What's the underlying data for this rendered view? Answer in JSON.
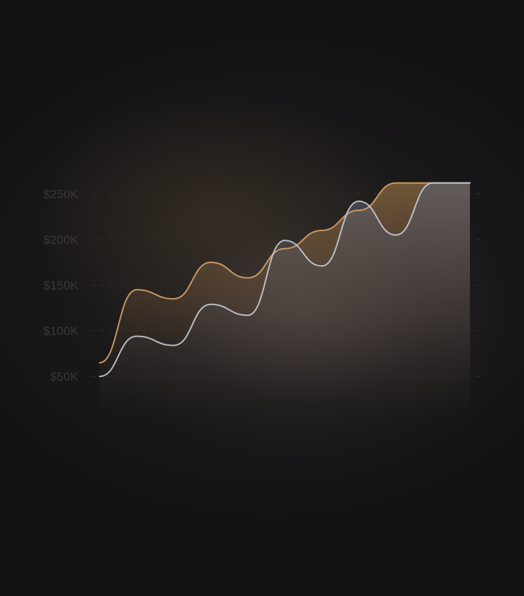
{
  "chart_data": {
    "type": "area",
    "y_tick_labels": [
      "$50K",
      "$100K",
      "$150K",
      "$200K",
      "$250K"
    ],
    "y_ticks": [
      50000,
      100000,
      150000,
      200000,
      250000
    ],
    "ylim": [
      50000,
      250000
    ],
    "grid": true,
    "series": [
      {
        "color": "#d8a46a",
        "x": [
          0,
          1,
          2,
          3,
          4,
          5,
          6,
          7,
          8,
          9,
          10
        ],
        "values": [
          65000,
          145000,
          135000,
          175000,
          158000,
          190000,
          210000,
          232000,
          262000,
          262000,
          262000
        ]
      },
      {
        "color": "#c8ccd6",
        "x": [
          0,
          1,
          2,
          3,
          4,
          5,
          6,
          7,
          8,
          9,
          10
        ],
        "values": [
          50000,
          94000,
          84000,
          129000,
          117000,
          199000,
          171000,
          242000,
          205000,
          262000,
          262000
        ]
      }
    ]
  },
  "colors": {
    "background": "#111114",
    "gold_line": "#d8a46a",
    "silver_line": "#c8ccd6",
    "tick_text": "#3a3734",
    "grid": "#2f2c2a"
  }
}
